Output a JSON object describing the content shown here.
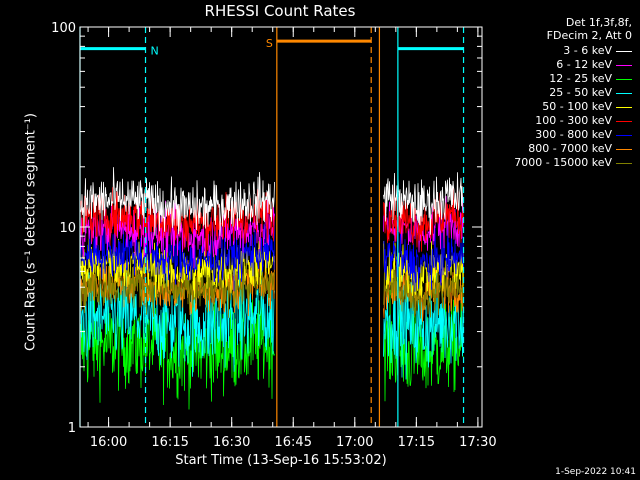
{
  "chart_data": {
    "type": "line",
    "title": "RHESSI Count Rates",
    "xlabel": "Start Time (13-Sep-16 15:53:02)",
    "ylabel": "Count Rate (s⁻¹ detector segment⁻¹)",
    "ylog": true,
    "ylim": [
      1,
      100
    ],
    "xlim": [
      "15:53:02",
      "17:31:00"
    ],
    "xticks": [
      "16:00",
      "16:15",
      "16:30",
      "16:45",
      "17:00",
      "17:15",
      "17:30"
    ],
    "yticks": [
      "1",
      "10",
      "100"
    ],
    "legend_header": [
      "Det 1f,3f,8f,",
      "FDecim 2, Att 0"
    ],
    "legend_position": "top-right",
    "data_gap": [
      "16:40:30",
      "17:07:00"
    ],
    "series": [
      {
        "name": "3 - 6 keV",
        "color": "#ffffff",
        "level_before": 13.0,
        "level_after": 13.5
      },
      {
        "name": "6 - 12 keV",
        "color": "#ff00ff",
        "level_before": 9.5,
        "level_after": 10.0
      },
      {
        "name": "12 - 25 keV",
        "color": "#00ff00",
        "level_before": 2.5,
        "level_after": 2.4
      },
      {
        "name": "25 - 50 keV",
        "color": "#00ffff",
        "level_before": 3.4,
        "level_after": 3.3
      },
      {
        "name": "50 - 100 keV",
        "color": "#ffff00",
        "level_before": 6.3,
        "level_after": 6.0
      },
      {
        "name": "100 - 300 keV",
        "color": "#ff0000",
        "level_before": 11.0,
        "level_after": 11.0
      },
      {
        "name": "300 - 800 keV",
        "color": "#0000ff",
        "level_before": 7.2,
        "level_after": 6.8
      },
      {
        "name": "800 - 7000 keV",
        "color": "#ff8800",
        "level_before": 5.0,
        "level_after": 4.8
      },
      {
        "name": "7000 - 15000 keV",
        "color": "#808000",
        "level_before": 5.0,
        "level_after": 4.8
      }
    ],
    "annotations": [
      {
        "label": "N",
        "color": "#00ffff",
        "bar": [
          "15:53:02",
          "16:09:00"
        ],
        "y": 78
      },
      {
        "label": "S",
        "color": "#ff8800",
        "bar": [
          "16:41:00",
          "17:04:00"
        ],
        "y": 85
      },
      {
        "label": "",
        "color": "#00ffff",
        "bar": [
          "17:10:30",
          "17:26:30"
        ],
        "y": 78
      }
    ],
    "vlines": [
      {
        "t": "15:53:02",
        "color": "#00ffff",
        "style": "solid"
      },
      {
        "t": "16:09:00",
        "color": "#00ffff",
        "style": "dashed"
      },
      {
        "t": "16:41:00",
        "color": "#ff8800",
        "style": "solid"
      },
      {
        "t": "17:04:00",
        "color": "#ff8800",
        "style": "dashed"
      },
      {
        "t": "17:06:00",
        "color": "#ff8800",
        "style": "solid"
      },
      {
        "t": "17:10:30",
        "color": "#00ffff",
        "style": "solid"
      },
      {
        "t": "17:26:30",
        "color": "#00ffff",
        "style": "dashed"
      }
    ]
  },
  "timestamp": "1-Sep-2022 10:41"
}
